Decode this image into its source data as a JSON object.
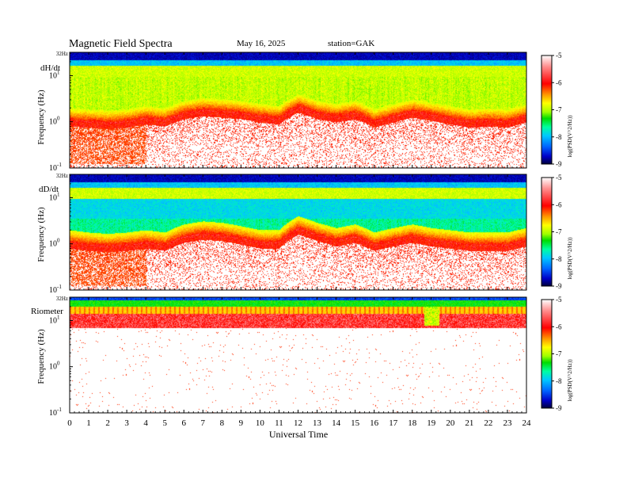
{
  "header": {
    "title": "Magnetic  Field  Spectra",
    "date": "May 16, 2025",
    "station": "station=GAK"
  },
  "chart_data": [
    {
      "type": "heatmap",
      "panel_label": "dH/dt",
      "ylabel": "Frequency  (Hz)",
      "xlabel": "",
      "xlim": [
        0,
        24
      ],
      "x_ticks": [
        "0",
        "1",
        "2",
        "3",
        "4",
        "5",
        "6",
        "7",
        "8",
        "9",
        "10",
        "11",
        "12",
        "13",
        "14",
        "15",
        "16",
        "17",
        "18",
        "19",
        "20",
        "21",
        "22",
        "23",
        "24"
      ],
      "y_scale": "log",
      "y_tick_labels": [
        {
          "value": 32,
          "base": "32Hz",
          "exp": ""
        },
        {
          "value": 10,
          "base": "10",
          "exp": "1"
        },
        {
          "value": 1,
          "base": "10",
          "exp": "0"
        },
        {
          "value": 0.1,
          "base": "10",
          "exp": "-1"
        }
      ],
      "ylim": [
        0.1,
        32
      ],
      "colorbar": {
        "label": "log(PSD(V^2/Hz))",
        "ticks": [
          "-5",
          "-6",
          "-7",
          "-8",
          "-9"
        ],
        "range": [
          -9,
          -5
        ]
      },
      "lower_edge_1hz_level": [
        0.9,
        0.85,
        0.8,
        0.85,
        1.0,
        0.9,
        1.3,
        1.5,
        1.4,
        1.3,
        1.1,
        1.0,
        1.8,
        1.3,
        1.1,
        1.3,
        0.85,
        1.1,
        1.4,
        1.2,
        1.0,
        0.85,
        0.9,
        0.85,
        1.1
      ]
    },
    {
      "type": "heatmap",
      "panel_label": "dD/dt",
      "ylabel": "Frequency  (Hz)",
      "xlabel": "",
      "xlim": [
        0,
        24
      ],
      "x_ticks": [
        "0",
        "1",
        "2",
        "3",
        "4",
        "5",
        "6",
        "7",
        "8",
        "9",
        "10",
        "11",
        "12",
        "13",
        "14",
        "15",
        "16",
        "17",
        "18",
        "19",
        "20",
        "21",
        "22",
        "23",
        "24"
      ],
      "y_scale": "log",
      "y_tick_labels": [
        {
          "value": 32,
          "base": "32Hz",
          "exp": ""
        },
        {
          "value": 10,
          "base": "10",
          "exp": "1"
        },
        {
          "value": 1,
          "base": "10",
          "exp": "0"
        },
        {
          "value": 0.1,
          "base": "10",
          "exp": "-1"
        }
      ],
      "ylim": [
        0.1,
        32
      ],
      "colorbar": {
        "label": "log(PSD(V^2/Hz))",
        "ticks": [
          "-5",
          "-6",
          "-7",
          "-8",
          "-9"
        ],
        "range": [
          -9,
          -5
        ]
      },
      "lower_edge_1hz_level": [
        0.9,
        0.8,
        0.75,
        0.8,
        0.9,
        0.8,
        1.2,
        1.4,
        1.3,
        1.1,
        0.9,
        0.9,
        1.8,
        1.3,
        1.0,
        1.2,
        0.8,
        1.0,
        1.2,
        1.0,
        0.9,
        0.8,
        0.8,
        0.8,
        1.0
      ]
    },
    {
      "type": "heatmap",
      "panel_label": "Riometer",
      "ylabel": "Frequency  (Hz)",
      "xlabel": "Universal  Time",
      "xlim": [
        0,
        24
      ],
      "x_ticks": [
        "0",
        "1",
        "2",
        "3",
        "4",
        "5",
        "6",
        "7",
        "8",
        "9",
        "10",
        "11",
        "12",
        "13",
        "14",
        "15",
        "16",
        "17",
        "18",
        "19",
        "20",
        "21",
        "22",
        "23",
        "24"
      ],
      "y_scale": "log",
      "y_tick_labels": [
        {
          "value": 32,
          "base": "32Hz",
          "exp": ""
        },
        {
          "value": 10,
          "base": "10",
          "exp": "1"
        },
        {
          "value": 1,
          "base": "10",
          "exp": "0"
        },
        {
          "value": 0.1,
          "base": "10",
          "exp": "-1"
        }
      ],
      "ylim": [
        0.1,
        32
      ],
      "colorbar": {
        "label": "log(PSD(V^2/Hz))",
        "ticks": [
          "-5",
          "-6",
          "-7",
          "-8",
          "-9"
        ],
        "range": [
          -9,
          -5
        ]
      },
      "burst_time_hours": 19.0
    }
  ],
  "colors": {
    "scale": [
      "#00003c",
      "#0000c8",
      "#0064ff",
      "#00c8ff",
      "#00ffa0",
      "#00dc00",
      "#a0ff00",
      "#ffff00",
      "#ff9600",
      "#ff0000",
      "#ffffff"
    ]
  }
}
